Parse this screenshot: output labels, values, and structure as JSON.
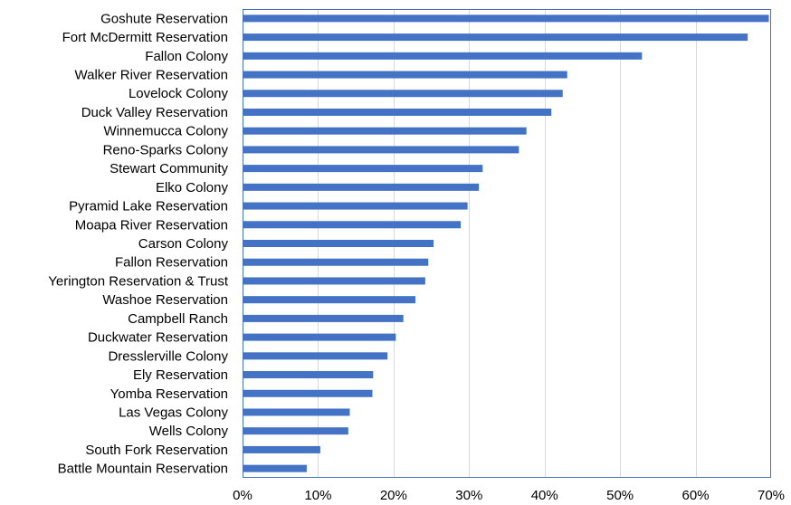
{
  "chart_data": {
    "type": "bar",
    "orientation": "horizontal",
    "title": "",
    "xlabel": "",
    "ylabel": "",
    "categories": [
      "Goshute Reservation",
      "Fort McDermitt Reservation",
      "Fallon Colony",
      "Walker River Reservation",
      "Lovelock Colony",
      "Duck Valley Reservation",
      "Winnemucca Colony",
      "Reno-Sparks Colony",
      "Stewart Community",
      "Elko Colony",
      "Pyramid Lake Reservation",
      "Moapa River Reservation",
      "Carson Colony",
      "Fallon Reservation",
      "Yerington Reservation & Trust",
      "Washoe Reservation",
      "Campbell Ranch",
      "Duckwater Reservation",
      "Dresslerville Colony",
      "Ely Reservation",
      "Yomba Reservation",
      "Las Vegas Colony",
      "Wells Colony",
      "South Fork Reservation",
      "Battle Mountain Reservation"
    ],
    "values": [
      69.7,
      66.9,
      52.9,
      43.0,
      42.4,
      40.9,
      37.6,
      36.6,
      31.8,
      31.3,
      29.8,
      28.9,
      25.3,
      24.6,
      24.2,
      22.9,
      21.3,
      20.3,
      19.2,
      17.3,
      17.2,
      14.2,
      14.0,
      10.3,
      8.5
    ],
    "xlim": [
      0,
      70
    ],
    "x_ticks": [
      0,
      10,
      20,
      30,
      40,
      50,
      60,
      70
    ],
    "x_tick_labels": [
      "0%",
      "10%",
      "20%",
      "30%",
      "40%",
      "50%",
      "60%",
      "70%"
    ],
    "grid": "vertical",
    "legend": "none",
    "bar_color": "#4472c4"
  }
}
